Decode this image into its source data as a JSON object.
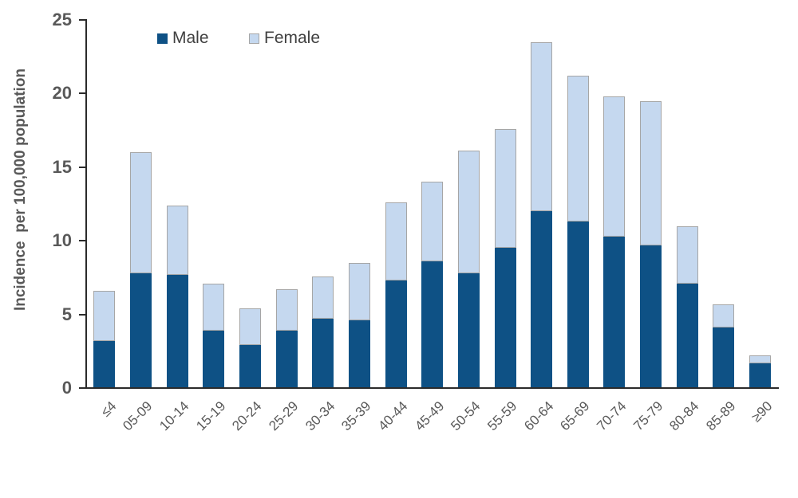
{
  "chart_data": {
    "type": "bar",
    "stacked": true,
    "title": "",
    "xlabel": "",
    "ylabel": "Incidence  per 100,000 population",
    "ylim": [
      0,
      25
    ],
    "yticks": [
      0,
      5,
      10,
      15,
      20,
      25
    ],
    "grid": false,
    "legend_position": "top-inside",
    "categories": [
      "≤4",
      "05-09",
      "10-14",
      "15-19",
      "20-24",
      "25-29",
      "30-34",
      "35-39",
      "40-44",
      "45-49",
      "50-54",
      "55-59",
      "60-64",
      "65-69",
      "70-74",
      "75-79",
      "80-84",
      "85-89",
      "≥90"
    ],
    "series": [
      {
        "name": "Male",
        "color": "#0E5185",
        "values": [
          3.2,
          7.8,
          7.7,
          3.9,
          2.9,
          3.9,
          4.7,
          4.6,
          7.3,
          8.6,
          7.8,
          9.5,
          12.0,
          11.3,
          10.3,
          9.7,
          7.1,
          4.1,
          1.7
        ]
      },
      {
        "name": "Female",
        "color": "#C5D8EF",
        "values": [
          3.4,
          8.2,
          4.7,
          3.2,
          2.5,
          2.8,
          2.9,
          3.9,
          5.3,
          5.4,
          8.3,
          8.1,
          11.5,
          9.9,
          9.5,
          9.8,
          3.9,
          1.6,
          0.5
        ]
      }
    ],
    "totals": [
      6.6,
      16.0,
      12.4,
      7.1,
      5.4,
      6.7,
      7.6,
      8.5,
      12.6,
      14.0,
      16.1,
      17.6,
      23.5,
      21.2,
      19.8,
      19.5,
      11.0,
      5.7,
      2.2
    ]
  },
  "colors": {
    "background": "#FFFFFF",
    "bar_border": "#A6A6A6",
    "axis": "#2B2B2B",
    "axis_text": "#595959",
    "legend_text": "#404040"
  }
}
